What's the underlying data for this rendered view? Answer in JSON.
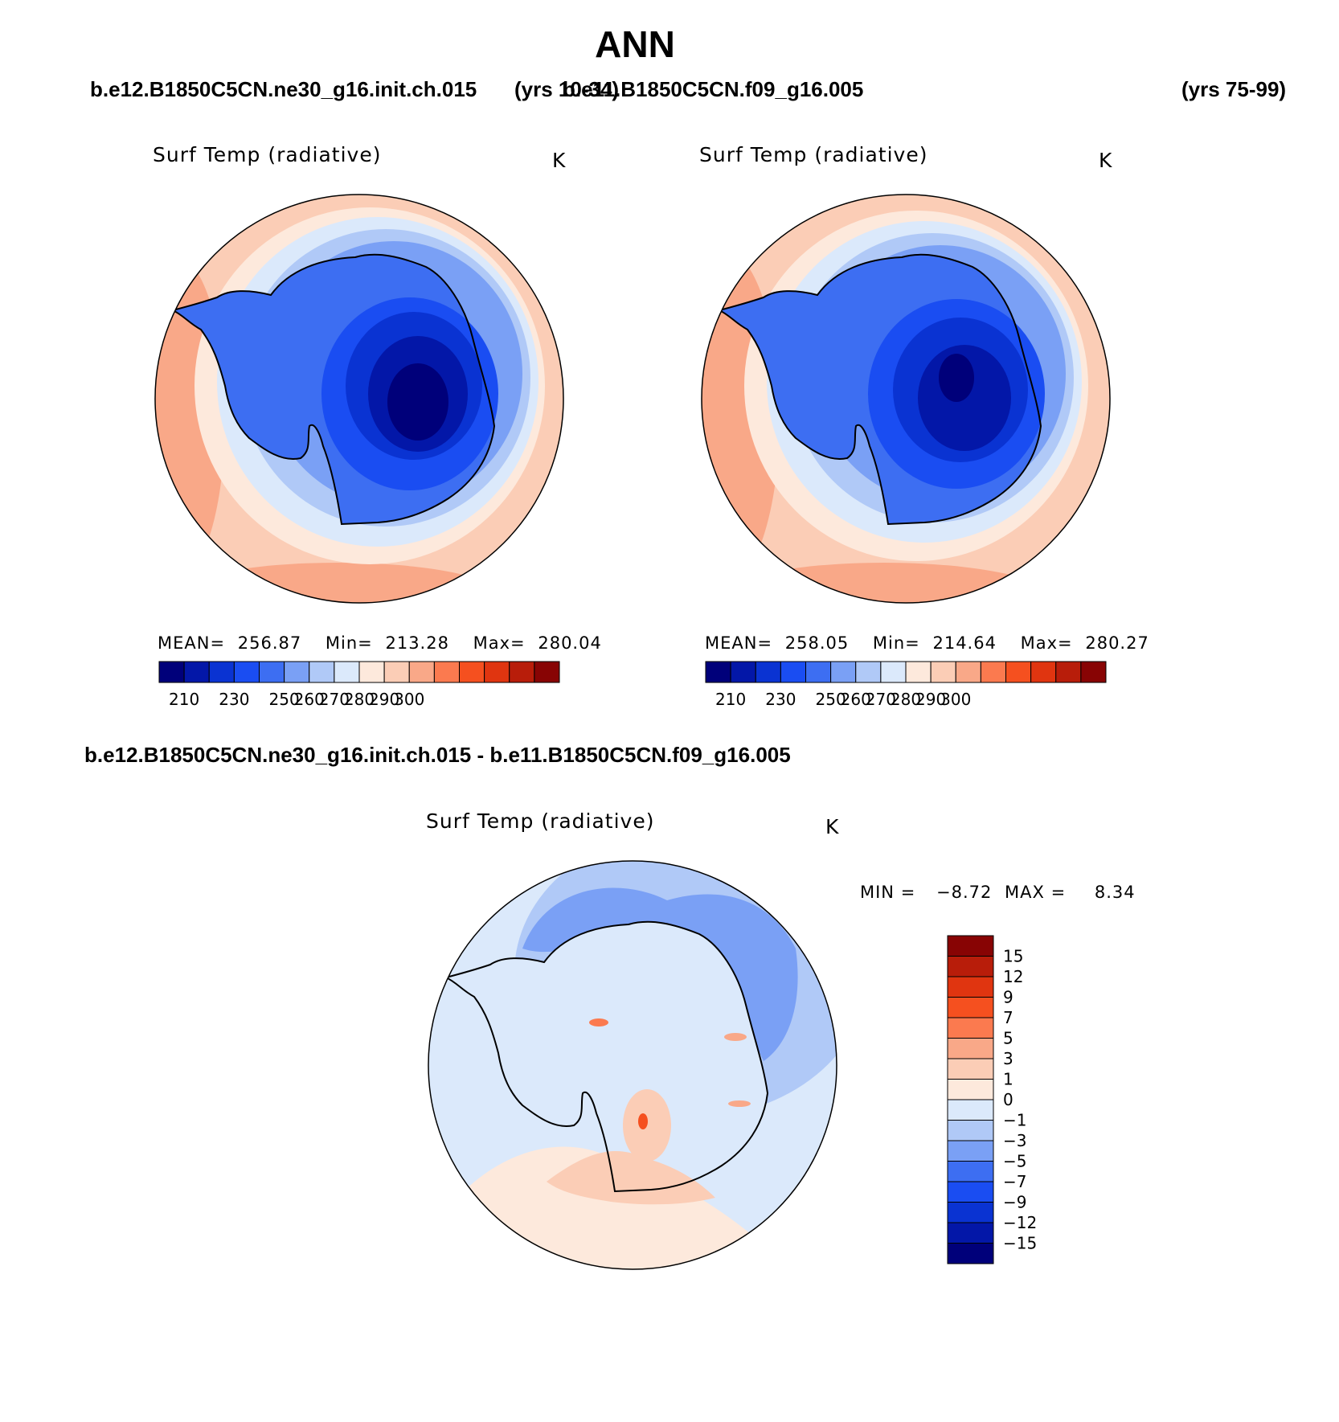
{
  "header": {
    "title": "ANN",
    "case_a": "b.e12.B1850C5CN.ne30_g16.init.ch.015",
    "case_a_years": "(yrs 10-34)",
    "case_b": "b.e11.B1850C5CN.f09_g16.005",
    "case_b_years": "(yrs 75-99)",
    "diff_title": "b.e12.B1850C5CN.ne30_g16.init.ch.015 - b.e11.B1850C5CN.f09_g16.005"
  },
  "colors": {
    "abs_scale": [
      "#00007a",
      "#0317a8",
      "#0a33d2",
      "#1a4df2",
      "#3d6ef2",
      "#7aa0f5",
      "#b0c9f7",
      "#dbe9fb",
      "#fde9dc",
      "#fbcdb6",
      "#f9a888",
      "#fb7a4f",
      "#f5501f",
      "#e03510",
      "#b81d0a",
      "#880404"
    ],
    "diff_scale": [
      "#00007a",
      "#0317a8",
      "#0a33d2",
      "#1a4df2",
      "#3d6ef2",
      "#7aa0f5",
      "#b0c9f7",
      "#dbe9fb",
      "#fde9dc",
      "#fbcdb6",
      "#f9a888",
      "#fb7a4f",
      "#f5501f",
      "#e03510",
      "#b81d0a",
      "#880404"
    ]
  },
  "chart_data": [
    {
      "type": "heatmap",
      "id": "panel-case-a",
      "title": "Surf Temp (radiative)",
      "units": "K",
      "projection": "south-polar-stereographic",
      "stats_text": {
        "mean_label": "MEAN=",
        "mean": "256.87",
        "min_label": "Min=",
        "min": "213.28",
        "max_label": "Max=",
        "max": "280.04"
      },
      "mean": 256.87,
      "min": 213.28,
      "max": 280.04,
      "levels": [
        210,
        220,
        230,
        240,
        250,
        255,
        260,
        265,
        270,
        275,
        280,
        285,
        290,
        295,
        300
      ],
      "tick_labels": [
        "210",
        "230",
        "250",
        "260",
        "270",
        "280",
        "290",
        "300"
      ]
    },
    {
      "type": "heatmap",
      "id": "panel-case-b",
      "title": "Surf Temp (radiative)",
      "units": "K",
      "projection": "south-polar-stereographic",
      "stats_text": {
        "mean_label": "MEAN=",
        "mean": "258.05",
        "min_label": "Min=",
        "min": "214.64",
        "max_label": "Max=",
        "max": "280.27"
      },
      "mean": 258.05,
      "min": 214.64,
      "max": 280.27,
      "levels": [
        210,
        220,
        230,
        240,
        250,
        255,
        260,
        265,
        270,
        275,
        280,
        285,
        290,
        295,
        300
      ],
      "tick_labels": [
        "210",
        "230",
        "250",
        "260",
        "270",
        "280",
        "290",
        "300"
      ]
    },
    {
      "type": "heatmap",
      "id": "panel-difference",
      "title": "Surf Temp (radiative)",
      "units": "K",
      "projection": "south-polar-stereographic",
      "stats_text": {
        "min_label": "MIN =",
        "min": "−8.72",
        "max_label": "MAX =",
        "max": "8.34"
      },
      "min": -8.72,
      "max": 8.34,
      "levels": [
        -15,
        -12,
        -9,
        -7,
        -5,
        -3,
        -1,
        0,
        1,
        3,
        5,
        7,
        9,
        12,
        15
      ],
      "tick_labels": [
        "15",
        "12",
        "9",
        "7",
        "5",
        "3",
        "1",
        "0",
        "−1",
        "−3",
        "−5",
        "−7",
        "−9",
        "−12",
        "−15"
      ]
    }
  ]
}
